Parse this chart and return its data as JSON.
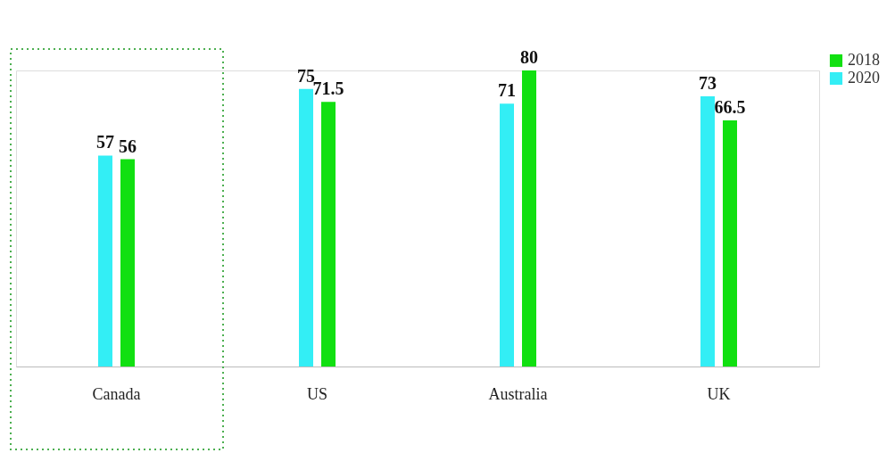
{
  "chart_data": {
    "type": "bar",
    "categories": [
      "Canada",
      "US",
      "Australia",
      "UK"
    ],
    "series": [
      {
        "name": "2018",
        "color": "#11e011",
        "values": [
          56,
          71.5,
          80,
          66.5
        ]
      },
      {
        "name": "2020",
        "color": "#33eef5",
        "values": [
          57,
          75,
          71,
          73
        ]
      }
    ],
    "data_labels": true,
    "legend": "top right",
    "grid": false
  }
}
